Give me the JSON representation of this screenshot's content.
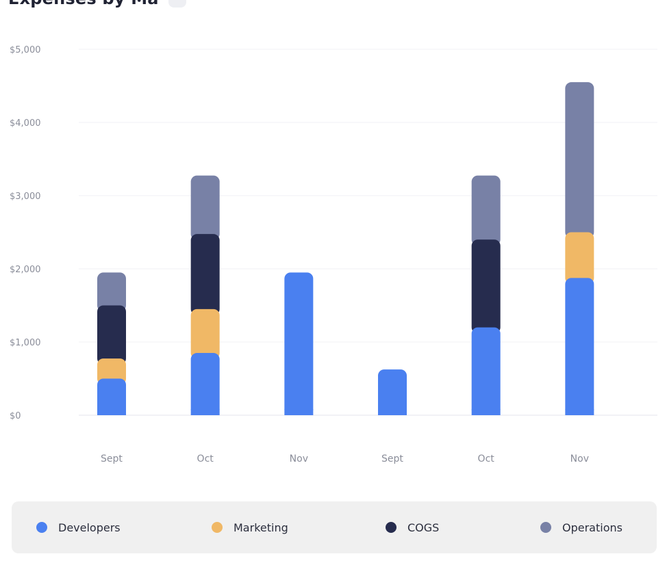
{
  "header": {
    "title": "Expenses by Ma"
  },
  "chart_data": {
    "type": "bar",
    "stacked": true,
    "categories": [
      "Sept",
      "Oct",
      "Nov",
      "Sept",
      "Oct",
      "Nov"
    ],
    "series": [
      {
        "name": "Developers",
        "color": "#4a80f0",
        "values": [
          500,
          850,
          1950,
          625,
          1200,
          1875
        ]
      },
      {
        "name": "Marketing",
        "color": "#f0b866",
        "values": [
          275,
          600,
          0,
          0,
          0,
          625
        ]
      },
      {
        "name": "COGS",
        "color": "#262c4e",
        "values": [
          725,
          1025,
          0,
          0,
          1200,
          0
        ]
      },
      {
        "name": "Operations",
        "color": "#7881a6",
        "values": [
          450,
          800,
          0,
          0,
          875,
          2050
        ]
      }
    ],
    "ylim": [
      0,
      5000
    ],
    "yticks": [
      0,
      1000,
      2000,
      3000,
      4000,
      5000
    ],
    "ytick_labels": [
      "$0",
      "$1,000",
      "$2,000",
      "$3,000",
      "$4,000",
      "$5,000"
    ],
    "grid": true,
    "legend_position": "bottom"
  }
}
